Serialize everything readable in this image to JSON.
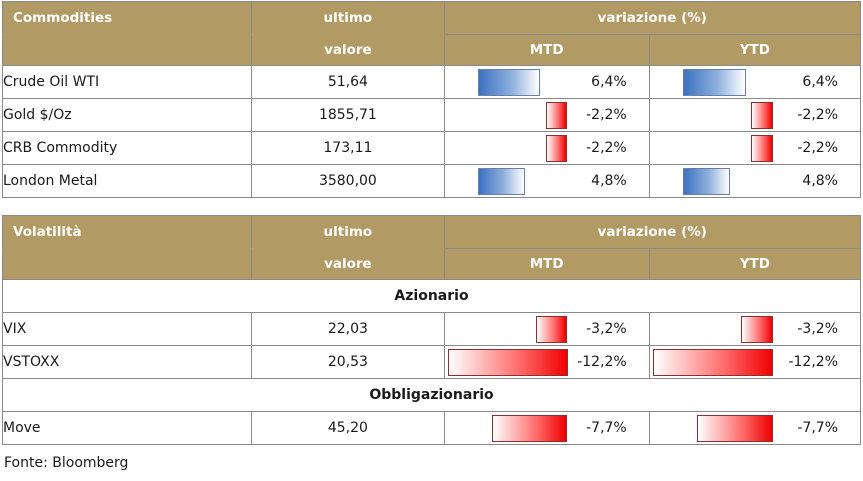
{
  "commodities": {
    "title": "Commodities",
    "col_ultimo": "ultimo",
    "col_valore": "valore",
    "col_variazione": "variazione (%)",
    "col_mtd": "MTD",
    "col_ytd": "YTD",
    "rows": [
      {
        "name": "Crude Oil WTI",
        "value": "51,64",
        "mtd": "6,4%",
        "ytd": "6,4%",
        "mtd_num": 6.4,
        "ytd_num": 6.4
      },
      {
        "name": "Gold $/Oz",
        "value": "1855,71",
        "mtd": "-2,2%",
        "ytd": "-2,2%",
        "mtd_num": -2.2,
        "ytd_num": -2.2
      },
      {
        "name": "CRB Commodity",
        "value": "173,11",
        "mtd": "-2,2%",
        "ytd": "-2,2%",
        "mtd_num": -2.2,
        "ytd_num": -2.2
      },
      {
        "name": "London Metal",
        "value": "3580,00",
        "mtd": "4,8%",
        "ytd": "4,8%",
        "mtd_num": 4.8,
        "ytd_num": 4.8
      }
    ]
  },
  "volatilita": {
    "title": "Volatilità",
    "col_ultimo": "ultimo",
    "col_valore": "valore",
    "col_variazione": "variazione (%)",
    "col_mtd": "MTD",
    "col_ytd": "YTD",
    "sections": [
      {
        "name": "Azionario",
        "rows": [
          {
            "name": "VIX",
            "value": "22,03",
            "mtd": "-3,2%",
            "ytd": "-3,2%",
            "mtd_num": -3.2,
            "ytd_num": -3.2
          },
          {
            "name": "VSTOXX",
            "value": "20,53",
            "mtd": "-12,2%",
            "ytd": "-12,2%",
            "mtd_num": -12.2,
            "ytd_num": -12.2
          }
        ]
      },
      {
        "name": "Obbligazionario",
        "rows": [
          {
            "name": "Move",
            "value": "45,20",
            "mtd": "-7,7%",
            "ytd": "-7,7%",
            "mtd_num": -7.7,
            "ytd_num": -7.7
          }
        ]
      }
    ]
  },
  "source": "Fonte: Bloomberg",
  "colors": {
    "header": "#b29a64",
    "positive_bar": "#3d72c0",
    "negative_bar": "#ee0000"
  }
}
